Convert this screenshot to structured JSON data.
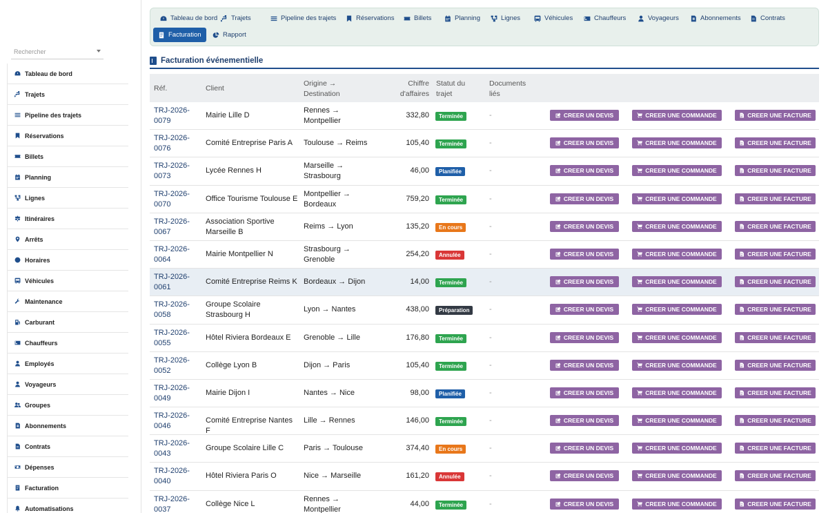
{
  "search": {
    "placeholder": "Rechercher"
  },
  "colors": {
    "primary": "#1f4e8c",
    "action": "#8e64a3",
    "terminee": "#2ea44f",
    "planifiee": "#1f5fa8",
    "en_cours": "#e8771a",
    "annulee": "#d93737",
    "preparation": "#333a44"
  },
  "sidebar": {
    "items": [
      {
        "label": "Tableau de bord",
        "icon": "dashboard-icon"
      },
      {
        "label": "Trajets",
        "icon": "route-icon"
      },
      {
        "label": "Pipeline des trajets",
        "icon": "list-icon"
      },
      {
        "label": "Réservations",
        "icon": "bookmark-icon"
      },
      {
        "label": "Billets",
        "icon": "ticket-icon"
      },
      {
        "label": "Planning",
        "icon": "calendar-icon"
      },
      {
        "label": "Lignes",
        "icon": "network-icon"
      },
      {
        "label": "Itinéraires",
        "icon": "signs-icon"
      },
      {
        "label": "Arrêts",
        "icon": "map-pin-icon"
      },
      {
        "label": "Horaires",
        "icon": "clock-icon"
      },
      {
        "label": "Véhicules",
        "icon": "bus-icon"
      },
      {
        "label": "Maintenance",
        "icon": "wrench-icon"
      },
      {
        "label": "Carburant",
        "icon": "fuel-icon"
      },
      {
        "label": "Chauffeurs",
        "icon": "id-card-icon"
      },
      {
        "label": "Employés",
        "icon": "user-icon"
      },
      {
        "label": "Voyageurs",
        "icon": "user-icon"
      },
      {
        "label": "Groupes",
        "icon": "users-icon"
      },
      {
        "label": "Abonnements",
        "icon": "card-icon"
      },
      {
        "label": "Contrats",
        "icon": "file-icon"
      },
      {
        "label": "Dépenses",
        "icon": "money-icon"
      },
      {
        "label": "Facturation",
        "icon": "invoice-icon"
      },
      {
        "label": "Automatisations",
        "icon": "bell-icon"
      }
    ]
  },
  "topnav": {
    "tabs": [
      {
        "label": "Tableau de bord",
        "icon": "dashboard-icon"
      },
      {
        "label": "Trajets",
        "icon": "route-icon"
      },
      {
        "label": "Pipeline des trajets",
        "icon": "list-icon"
      },
      {
        "label": "Réservations",
        "icon": "bookmark-icon"
      },
      {
        "label": "Billets",
        "icon": "ticket-icon"
      },
      {
        "label": "Planning",
        "icon": "calendar-icon"
      },
      {
        "label": "Lignes",
        "icon": "network-icon"
      },
      {
        "label": "Véhicules",
        "icon": "bus-icon"
      },
      {
        "label": "Chauffeurs",
        "icon": "id-card-icon"
      },
      {
        "label": "Voyageurs",
        "icon": "user-icon"
      },
      {
        "label": "Abonnements",
        "icon": "card-icon"
      },
      {
        "label": "Contrats",
        "icon": "file-icon"
      },
      {
        "label": "Facturation",
        "icon": "invoice-icon",
        "active": true
      },
      {
        "label": "Rapport",
        "icon": "pie-chart-icon"
      }
    ]
  },
  "main": {
    "title": "Facturation événementielle",
    "columns": {
      "ref": "Réf.",
      "client": "Client",
      "route": "Origine → Destination",
      "revenue": "Chiffre d'affaires",
      "status": "Statut du trajet",
      "docs": "Documents liés"
    },
    "actions": {
      "quote": "CREER UN DEVIS",
      "order": "CREER UNE COMMANDE",
      "invoice": "CREER UNE FACTURE"
    },
    "rows": [
      {
        "ref": "TRJ-2026-0079",
        "client": "Mairie Lille D",
        "route": "Rennes → Montpellier",
        "amount": "332,80",
        "status": "Terminée",
        "status_key": "terminee",
        "docs": "-"
      },
      {
        "ref": "TRJ-2026-0076",
        "client": "Comité Entreprise Paris A",
        "route": "Toulouse → Reims",
        "amount": "105,40",
        "status": "Terminée",
        "status_key": "terminee",
        "docs": "-"
      },
      {
        "ref": "TRJ-2026-0073",
        "client": "Lycée Rennes H",
        "route": "Marseille → Strasbourg",
        "amount": "46,00",
        "status": "Planifiée",
        "status_key": "planifiee",
        "docs": "-"
      },
      {
        "ref": "TRJ-2026-0070",
        "client": "Office Tourisme Toulouse E",
        "route": "Montpellier → Bordeaux",
        "amount": "759,20",
        "status": "Terminée",
        "status_key": "terminee",
        "docs": "-"
      },
      {
        "ref": "TRJ-2026-0067",
        "client": "Association Sportive Marseille B",
        "route": "Reims → Lyon",
        "amount": "135,20",
        "status": "En cours",
        "status_key": "en_cours",
        "docs": "-"
      },
      {
        "ref": "TRJ-2026-0064",
        "client": "Mairie Montpellier N",
        "route": "Strasbourg → Grenoble",
        "amount": "254,20",
        "status": "Annulée",
        "status_key": "annulee",
        "docs": "-"
      },
      {
        "ref": "TRJ-2026-0061",
        "client": "Comité Entreprise Reims K",
        "route": "Bordeaux → Dijon",
        "amount": "14,00",
        "status": "Terminée",
        "status_key": "terminee",
        "docs": "-",
        "highlight": true
      },
      {
        "ref": "TRJ-2026-0058",
        "client": "Groupe Scolaire Strasbourg H",
        "route": "Lyon → Nantes",
        "amount": "438,00",
        "status": "Préparation",
        "status_key": "preparation",
        "docs": "-"
      },
      {
        "ref": "TRJ-2026-0055",
        "client": "Hôtel Riviera Bordeaux E",
        "route": "Grenoble → Lille",
        "amount": "176,80",
        "status": "Terminée",
        "status_key": "terminee",
        "docs": "-"
      },
      {
        "ref": "TRJ-2026-0052",
        "client": "Collège Lyon B",
        "route": "Dijon → Paris",
        "amount": "105,40",
        "status": "Terminée",
        "status_key": "terminee",
        "docs": "-"
      },
      {
        "ref": "TRJ-2026-0049",
        "client": "Mairie Dijon I",
        "route": "Nantes → Nice",
        "amount": "98,00",
        "status": "Planifiée",
        "status_key": "planifiee",
        "docs": "-"
      },
      {
        "ref": "TRJ-2026-0046",
        "client": "Comité Entreprise Nantes F",
        "route": "Lille → Rennes",
        "amount": "146,00",
        "status": "Terminée",
        "status_key": "terminee",
        "docs": "-"
      },
      {
        "ref": "TRJ-2026-0043",
        "client": "Groupe Scolaire Lille C",
        "route": "Paris → Toulouse",
        "amount": "374,40",
        "status": "En cours",
        "status_key": "en_cours",
        "docs": "-"
      },
      {
        "ref": "TRJ-2026-0040",
        "client": "Hôtel Riviera Paris O",
        "route": "Nice → Marseille",
        "amount": "161,20",
        "status": "Annulée",
        "status_key": "annulee",
        "docs": "-"
      },
      {
        "ref": "TRJ-2026-0037",
        "client": "Collège Nice L",
        "route": "Rennes → Montpellier",
        "amount": "44,00",
        "status": "Terminée",
        "status_key": "terminee",
        "docs": "-"
      }
    ]
  }
}
